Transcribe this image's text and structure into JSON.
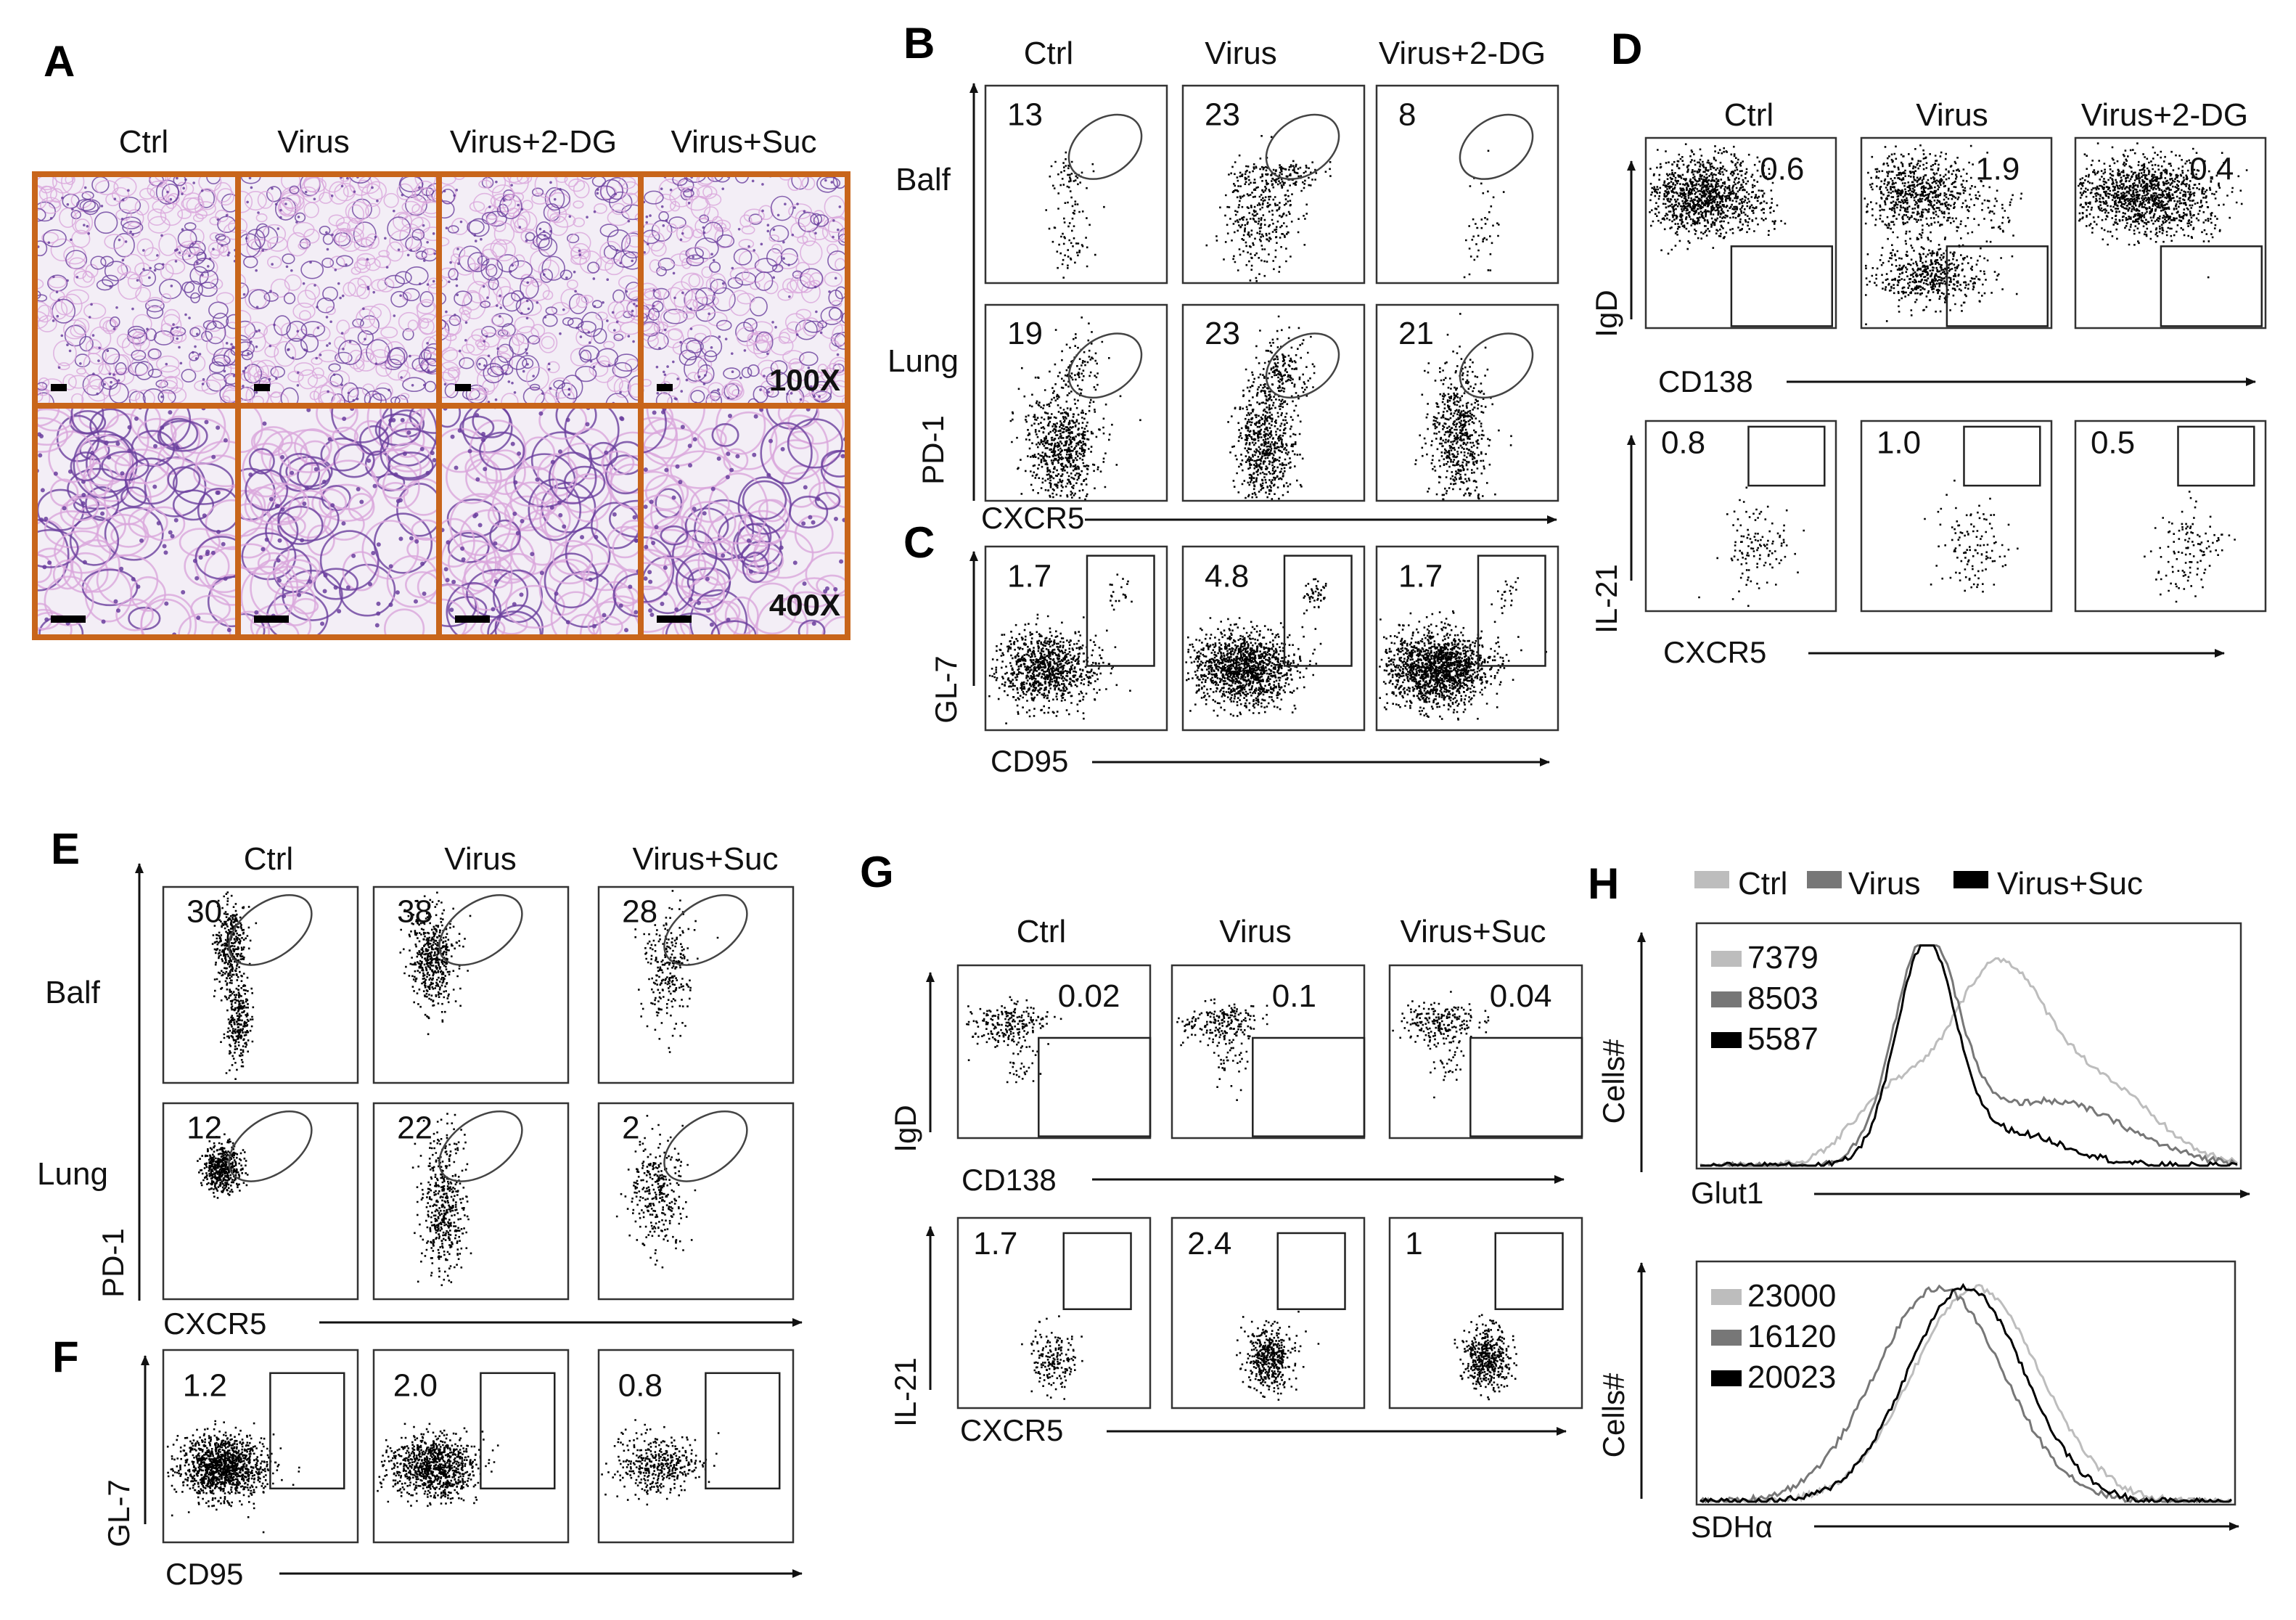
{
  "colors": {
    "panel_border": "#c8651b",
    "plot_frame": "#333333",
    "dot": "#000000",
    "hist_ctrl": "#bdbdbd",
    "hist_virus": "#777777",
    "hist_suc": "#000000",
    "tissue_pink": "#d9a6dc",
    "tissue_purple": "#6a3e9e",
    "tissue_bg": "#f3eef6"
  },
  "panel_letters": {
    "A": "A",
    "B": "B",
    "C": "C",
    "D": "D",
    "E": "E",
    "F": "F",
    "G": "G",
    "H": "H"
  },
  "panel_A": {
    "columns": [
      "Ctrl",
      "Virus",
      "Virus+2-DG",
      "Virus+Suc"
    ],
    "magnifications": [
      "100X",
      "400X"
    ]
  },
  "panel_B": {
    "columns": [
      "Ctrl",
      "Virus",
      "Virus+2-DG"
    ],
    "rows": [
      "Balf",
      "Lung"
    ],
    "values": [
      [
        "13",
        "23",
        "8"
      ],
      [
        "19",
        "23",
        "21"
      ]
    ],
    "y_axis": "PD-1",
    "x_axis": "CXCR5"
  },
  "panel_C": {
    "values": [
      "1.7",
      "4.8",
      "1.7"
    ],
    "y_axis": "GL-7",
    "x_axis": "CD95"
  },
  "panel_D": {
    "columns": [
      "Ctrl",
      "Virus",
      "Virus+2-DG"
    ],
    "top_values": [
      "0.6",
      "1.9",
      "0.4"
    ],
    "top_y": "IgD",
    "top_x": "CD138",
    "bottom_values": [
      "0.8",
      "1.0",
      "0.5"
    ],
    "bottom_y": "IL-21",
    "bottom_x": "CXCR5"
  },
  "panel_E": {
    "columns": [
      "Ctrl",
      "Virus",
      "Virus+Suc"
    ],
    "rows": [
      "Balf",
      "Lung"
    ],
    "values": [
      [
        "30",
        "38",
        "28"
      ],
      [
        "12",
        "22",
        "2"
      ]
    ],
    "y_axis": "PD-1",
    "x_axis": "CXCR5"
  },
  "panel_F": {
    "values": [
      "1.2",
      "2.0",
      "0.8"
    ],
    "y_axis": "GL-7",
    "x_axis": "CD95"
  },
  "panel_G": {
    "columns": [
      "Ctrl",
      "Virus",
      "Virus+Suc"
    ],
    "top_values": [
      "0.02",
      "0.1",
      "0.04"
    ],
    "top_y": "IgD",
    "top_x": "CD138",
    "bottom_values": [
      "1.7",
      "2.4",
      "1"
    ],
    "bottom_y": "IL-21",
    "bottom_x": "CXCR5"
  },
  "panel_H": {
    "legend": [
      "Ctrl",
      "Virus",
      "Virus+Suc"
    ],
    "top": {
      "values": [
        "7379",
        "8503",
        "5587"
      ],
      "y_axis": "Cells#",
      "x_axis": "Glut1"
    },
    "bottom": {
      "values": [
        "23000",
        "16120",
        "20023"
      ],
      "y_axis": "Cells#",
      "x_axis": "SDHα"
    }
  }
}
